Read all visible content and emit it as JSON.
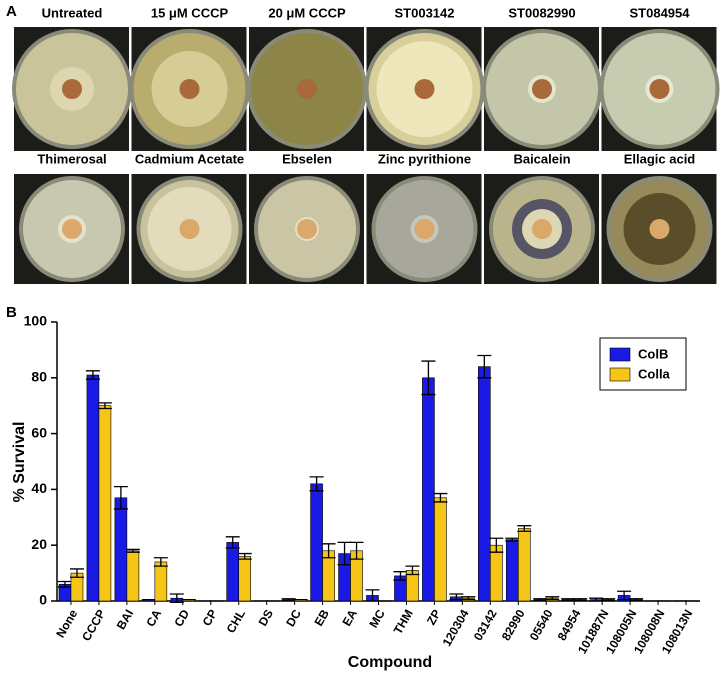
{
  "panel_a": {
    "label": "A",
    "dishes": [
      "Untreated",
      "15 μM CCCP",
      "20 μM CCCP",
      "ST003142",
      "ST0082990",
      "ST084954",
      "Thimerosal",
      "Cadmium Acetate",
      "Ebselen",
      "Zinc pyrithione",
      "Baicalein",
      "Ellagic acid"
    ]
  },
  "panel_b_label": "B",
  "chart_data": {
    "type": "bar",
    "x_label": "Compound",
    "y_label": "% Survival",
    "categories": [
      "None",
      "CCCP",
      "BAI",
      "CA",
      "CD",
      "CP",
      "CHL",
      "DS",
      "DC",
      "EB",
      "EA",
      "MC",
      "THM",
      "ZP",
      "120304",
      "03142",
      "82990",
      "05540",
      "84954",
      "101887N",
      "108005N",
      "108008N",
      "108013N"
    ],
    "series": [
      {
        "name": "ColB",
        "color": "#1a1ae6",
        "values": [
          6,
          81,
          37,
          0.5,
          1,
          0,
          21,
          0,
          0.5,
          42,
          17,
          2,
          9,
          80,
          1.5,
          84,
          22,
          0.5,
          0.5,
          0.5,
          2,
          0,
          0
        ],
        "errors": [
          1,
          1.5,
          4,
          0,
          1.5,
          0,
          2,
          0,
          0.3,
          2.5,
          4,
          2,
          1.5,
          6,
          1,
          4,
          0.5,
          0.3,
          0.3,
          0.5,
          1.5,
          0,
          0
        ]
      },
      {
        "name": "Colla",
        "color": "#f5c518",
        "values": [
          10,
          70,
          18,
          14,
          0.5,
          0,
          16,
          0,
          0.5,
          18,
          18,
          0,
          11,
          37,
          1,
          20,
          26,
          1,
          0.5,
          0.5,
          0.5,
          0,
          0
        ],
        "errors": [
          1.5,
          1,
          0.5,
          1.5,
          0,
          0,
          1,
          0,
          0,
          2.5,
          3,
          0,
          1.5,
          1.5,
          0.5,
          2.5,
          1,
          0.5,
          0.3,
          0.3,
          0.3,
          0,
          0
        ]
      }
    ],
    "ylim": [
      0,
      100
    ],
    "yticks": [
      0,
      20,
      40,
      60,
      80,
      100
    ],
    "grid": false,
    "legend": "top-right"
  }
}
